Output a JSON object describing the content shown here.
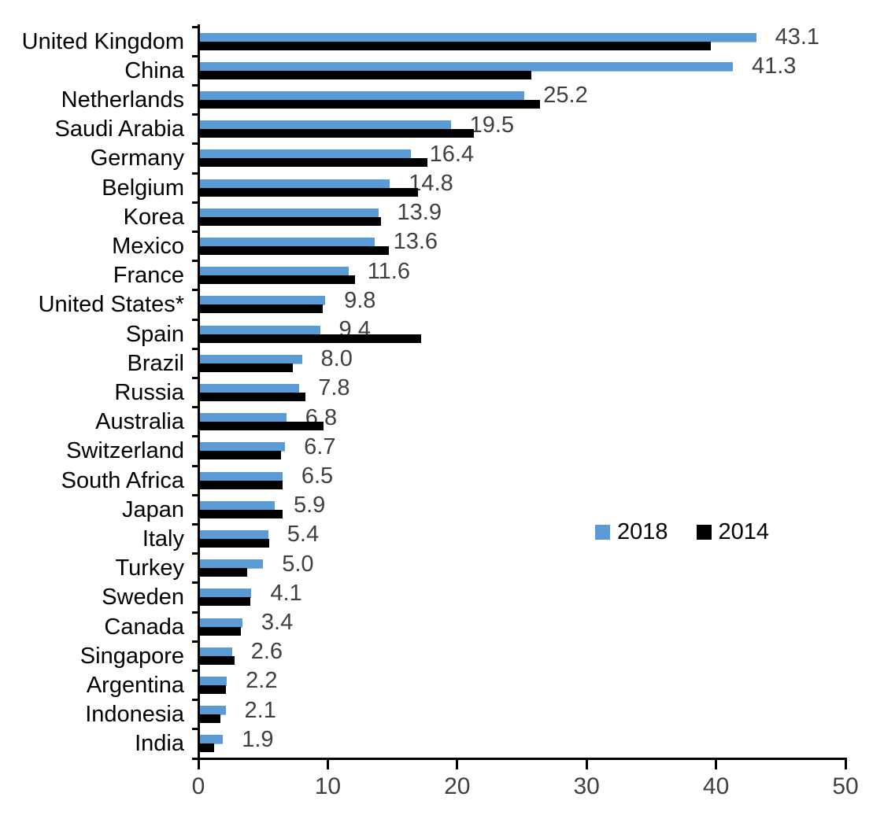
{
  "chart_data": {
    "type": "bar",
    "orientation": "horizontal",
    "title": "",
    "xlabel": "",
    "ylabel": "",
    "xlim": [
      0,
      50
    ],
    "x_ticks": [
      0,
      10,
      20,
      30,
      40,
      50
    ],
    "grid": false,
    "legend_position": "center-right",
    "value_label_source": "2018",
    "categories": [
      "United Kingdom",
      "China",
      "Netherlands",
      "Saudi Arabia",
      "Germany",
      "Belgium",
      "Korea",
      "Mexico",
      "France",
      "United States*",
      "Spain",
      "Brazil",
      "Russia",
      "Australia",
      "Switzerland",
      "South Africa",
      "Japan",
      "Italy",
      "Turkey",
      "Sweden",
      "Canada",
      "Singapore",
      "Argentina",
      "Indonesia",
      "India"
    ],
    "series": [
      {
        "name": "2018",
        "color": "#5B9BD5",
        "values": [
          43.1,
          41.3,
          25.2,
          19.5,
          16.4,
          14.8,
          13.9,
          13.6,
          11.6,
          9.8,
          9.4,
          8.0,
          7.8,
          6.8,
          6.7,
          6.5,
          5.9,
          5.4,
          5.0,
          4.1,
          3.4,
          2.6,
          2.2,
          2.1,
          1.9
        ]
      },
      {
        "name": "2014",
        "color": "#000000",
        "values": [
          39.6,
          25.7,
          26.4,
          21.3,
          17.7,
          17.0,
          14.1,
          14.7,
          12.1,
          9.6,
          17.2,
          7.3,
          8.3,
          9.7,
          6.4,
          6.5,
          6.5,
          5.5,
          3.8,
          4.0,
          3.3,
          2.8,
          2.1,
          1.7,
          1.2
        ]
      }
    ],
    "value_labels": [
      "43.1",
      "41.3",
      "25.2",
      "19.5",
      "16.4",
      "14.8",
      "13.9",
      "13.6",
      "11.6",
      "9.8",
      "9.4",
      "8.0",
      "7.8",
      "6.8",
      "6.7",
      "6.5",
      "5.9",
      "5.4",
      "5.0",
      "4.1",
      "3.4",
      "2.6",
      "2.2",
      "2.1",
      "1.9"
    ]
  },
  "legend": {
    "items": [
      {
        "label": "2018",
        "color": "#5B9BD5"
      },
      {
        "label": "2014",
        "color": "#000000"
      }
    ]
  },
  "colors": {
    "axis": "#000000",
    "value_label": "#404040",
    "tick_label": "#404040",
    "category_label": "#000000"
  }
}
